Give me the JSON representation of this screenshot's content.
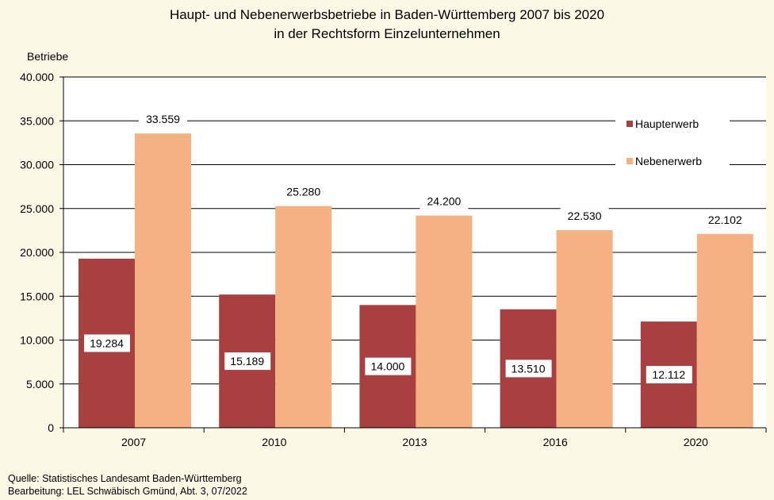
{
  "chart_data": {
    "type": "bar",
    "title": "Haupt- und Nebenerwerbsbetriebe in Baden-Württemberg 2007 bis 2020",
    "subtitle": "in der Rechtsform Einzelunternehmen",
    "ylabel": "Betriebe",
    "xlabel": "",
    "ylim": [
      0,
      40000
    ],
    "yticks": [
      0,
      5000,
      10000,
      15000,
      20000,
      25000,
      30000,
      35000,
      40000
    ],
    "ytick_labels": [
      "0",
      "5.000",
      "10.000",
      "15.000",
      "20.000",
      "25.000",
      "30.000",
      "35.000",
      "40.000"
    ],
    "categories": [
      "2007",
      "2010",
      "2013",
      "2016",
      "2020"
    ],
    "series": [
      {
        "name": "Haupterwerb",
        "color": "#A84040",
        "values": [
          19284,
          15189,
          14000,
          13510,
          12112
        ],
        "labels": [
          "19.284",
          "15.189",
          "14.000",
          "13.510",
          "12.112"
        ]
      },
      {
        "name": "Nebenerwerb",
        "color": "#F4B183",
        "values": [
          33559,
          25280,
          24200,
          22530,
          22102
        ],
        "labels": [
          "33.559",
          "25.280",
          "24.200",
          "22.530",
          "22.102"
        ]
      }
    ],
    "grid": true,
    "legend": "top-right"
  },
  "footer": {
    "source": "Quelle: Statistisches Landesamt Baden-Württemberg",
    "editor": "Bearbeitung: LEL Schwäbisch Gmünd, Abt. 3, 07/2022"
  }
}
